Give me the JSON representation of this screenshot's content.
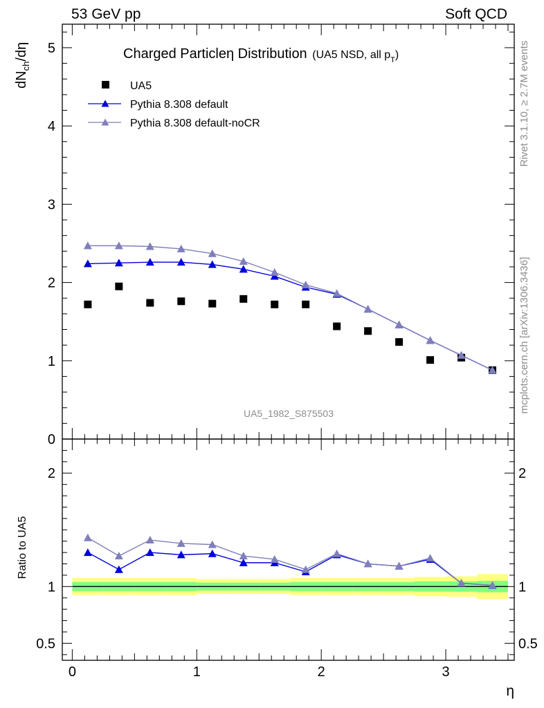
{
  "header": {
    "energy": "53 GeV pp",
    "process": "Soft QCD"
  },
  "side_text": {
    "rivet": "Rivet 3.1.10, ≥ 2.7M events",
    "mcplots": "mcplots.cern.ch [arXiv:1306.3436]"
  },
  "chart_data": [
    {
      "type": "scatter",
      "title": "Charged Particle η Distribution",
      "title_parts": {
        "main": "Charged Particleη Distribution",
        "sub": "(UA5 NSD, all p",
        "sub_sub": "T",
        "sub_end": ")"
      },
      "analysis_label": "UA5_1982_S875503",
      "ylabel": "dN",
      "ylabel_sub": "ch",
      "ylabel_end": "/dη",
      "xlim": [
        -0.08,
        3.55
      ],
      "ylim": [
        0,
        5.3
      ],
      "y_ticks": [
        0,
        1,
        2,
        3,
        4,
        5
      ],
      "y_tick_labels": [
        "0",
        "1",
        "2",
        "3",
        "4",
        "5"
      ],
      "legend_position": "top-left",
      "x": [
        0.125,
        0.375,
        0.625,
        0.875,
        1.125,
        1.375,
        1.625,
        1.875,
        2.125,
        2.375,
        2.625,
        2.875,
        3.125,
        3.375
      ],
      "series": [
        {
          "name": "UA5",
          "marker": "square",
          "color": "#000000",
          "values": [
            1.72,
            1.95,
            1.74,
            1.76,
            1.73,
            1.79,
            1.72,
            1.72,
            1.44,
            1.38,
            1.24,
            1.01,
            1.04,
            0.88
          ]
        },
        {
          "name": "Pythia 8.308 default",
          "marker": "triangle",
          "color": "#0000dd",
          "values": [
            2.24,
            2.25,
            2.26,
            2.26,
            2.23,
            2.17,
            2.08,
            1.94,
            1.85,
            1.66,
            1.46,
            1.26,
            1.07,
            0.88
          ]
        },
        {
          "name": "Pythia 8.308 default-noCR",
          "marker": "triangle",
          "color": "#7f7fbb",
          "values": [
            2.47,
            2.47,
            2.46,
            2.43,
            2.37,
            2.27,
            2.13,
            1.97,
            1.86,
            1.66,
            1.46,
            1.26,
            1.07,
            0.88
          ]
        }
      ]
    },
    {
      "type": "line",
      "ylabel": "Ratio to UA5",
      "xlabel": "η",
      "xlim": [
        -0.08,
        3.55
      ],
      "ylim": [
        0.35,
        2.3
      ],
      "x_ticks": [
        0,
        1,
        2,
        3
      ],
      "x_tick_labels": [
        "0",
        "1",
        "2",
        "3"
      ],
      "y_ticks": [
        0.5,
        1,
        2
      ],
      "y_tick_labels": [
        "0.5",
        "1",
        "2"
      ],
      "x": [
        0.125,
        0.375,
        0.625,
        0.875,
        1.125,
        1.375,
        1.625,
        1.875,
        2.125,
        2.375,
        2.625,
        2.875,
        3.125,
        3.375
      ],
      "bands": {
        "edges": [
          0,
          0.25,
          0.5,
          0.75,
          1.0,
          1.25,
          1.5,
          1.75,
          2.0,
          2.25,
          2.5,
          2.75,
          3.0,
          3.25,
          3.5
        ],
        "stat_half": [
          0.04,
          0.04,
          0.04,
          0.04,
          0.035,
          0.035,
          0.035,
          0.04,
          0.04,
          0.04,
          0.04,
          0.045,
          0.045,
          0.05
        ],
        "total_half": [
          0.075,
          0.075,
          0.075,
          0.075,
          0.065,
          0.065,
          0.065,
          0.075,
          0.075,
          0.075,
          0.075,
          0.085,
          0.09,
          0.11
        ],
        "stat_color": "#80ff80",
        "total_color": "#ffff80"
      },
      "series": [
        {
          "name": "Pythia 8.308 default",
          "color": "#0000dd",
          "values": [
            1.3,
            1.15,
            1.3,
            1.28,
            1.29,
            1.21,
            1.21,
            1.13,
            1.28,
            1.2,
            1.18,
            1.24,
            1.03,
            1.01
          ]
        },
        {
          "name": "Pythia 8.308 default-noCR",
          "color": "#7f7fbb",
          "values": [
            1.43,
            1.27,
            1.41,
            1.38,
            1.37,
            1.27,
            1.24,
            1.15,
            1.29,
            1.2,
            1.18,
            1.25,
            1.03,
            1.01
          ]
        }
      ]
    }
  ]
}
